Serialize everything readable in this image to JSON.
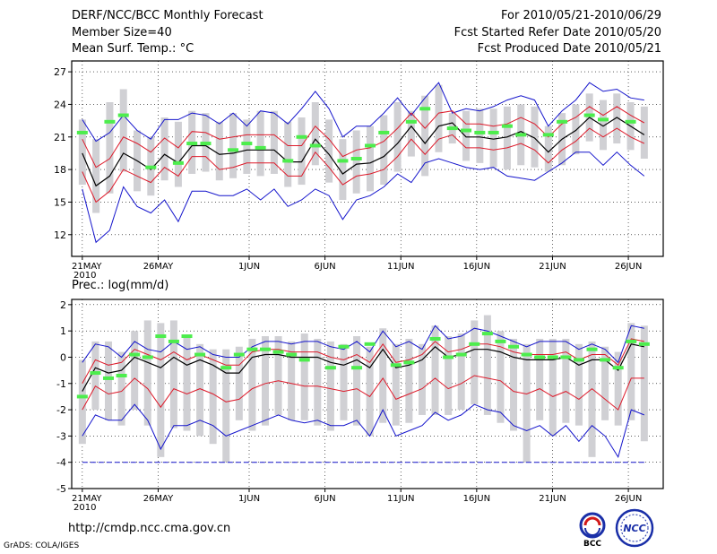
{
  "header": {
    "title": "DERF/NCC/BCC Monthly Forecast",
    "member_size": "Member Size=40",
    "variable": "Mean Surf. Temp.: °C",
    "period": "For 2010/05/21-2010/06/29",
    "started": "Fcst Started Refer Date 2010/05/20",
    "produced": "Fcst Produced Date 2010/05/21"
  },
  "footer": {
    "url": "http://cmdp.ncc.cma.gov.cn",
    "credit": "GrADS: COLA/IGES",
    "logo_bcc": "BCC",
    "logo_ncc": "NCC"
  },
  "colors": {
    "bar": "#d0d0d4",
    "obs": "#4ded4d",
    "mean": "#000000",
    "inner": "#dd1a2a",
    "outer": "#1414cc"
  },
  "chart_data": [
    {
      "type": "line",
      "title": "Mean Surf. Temp.: °C",
      "ylabel": "°C",
      "ylim": [
        10,
        28
      ],
      "yticks": [
        12,
        15,
        18,
        21,
        24,
        27
      ],
      "x_days": 39,
      "xtick_labels": [
        "21MAY",
        "26MAY",
        "1JUN",
        "6JUN",
        "11JUN",
        "16JUN",
        "21JUN",
        "26JUN"
      ],
      "xtick_days": [
        0,
        5,
        11,
        16,
        21,
        26,
        31,
        36
      ],
      "year_label": "2010",
      "mean": [
        19.5,
        16.5,
        17.4,
        19.5,
        18.8,
        18.0,
        19.4,
        18.6,
        20.2,
        20.2,
        19.4,
        19.5,
        19.8,
        19.8,
        19.8,
        18.7,
        18.7,
        20.8,
        19.4,
        17.6,
        18.5,
        18.6,
        19.2,
        20.4,
        22.0,
        20.4,
        22.0,
        22.3,
        21.0,
        21.0,
        20.8,
        21.0,
        21.5,
        20.9,
        19.6,
        20.8,
        21.6,
        22.8,
        22.0,
        22.8,
        22.0,
        21.2
      ],
      "inner_upper": [
        20.8,
        18.2,
        19.0,
        21.0,
        20.4,
        19.6,
        20.9,
        20.0,
        21.5,
        21.4,
        20.8,
        21.0,
        21.2,
        21.2,
        21.2,
        20.2,
        20.2,
        22.0,
        20.8,
        19.2,
        19.8,
        20.0,
        20.6,
        21.8,
        23.2,
        21.8,
        23.2,
        23.4,
        22.2,
        22.2,
        22.0,
        22.2,
        22.8,
        22.2,
        21.0,
        22.2,
        22.8,
        23.8,
        23.0,
        23.8,
        23.0,
        22.3
      ],
      "inner_lower": [
        17.8,
        15.0,
        16.0,
        18.0,
        17.4,
        16.8,
        18.2,
        17.4,
        19.2,
        19.2,
        18.0,
        18.2,
        18.6,
        18.6,
        18.6,
        17.4,
        17.4,
        19.6,
        18.2,
        16.6,
        17.4,
        17.6,
        18.0,
        19.2,
        20.8,
        19.4,
        20.8,
        21.2,
        20.0,
        20.0,
        19.8,
        20.0,
        20.4,
        19.8,
        18.6,
        19.8,
        20.6,
        21.8,
        21.0,
        21.8,
        21.0,
        20.4
      ],
      "outer_upper": [
        22.6,
        20.6,
        21.4,
        23.0,
        21.6,
        20.8,
        22.6,
        22.6,
        23.2,
        23.0,
        22.2,
        23.2,
        22.0,
        23.4,
        23.2,
        22.2,
        23.6,
        25.2,
        23.6,
        21.0,
        22.0,
        22.0,
        23.2,
        24.6,
        23.0,
        24.6,
        26.0,
        23.2,
        23.6,
        23.4,
        23.8,
        24.4,
        24.8,
        24.4,
        22.0,
        23.4,
        24.4,
        26.0,
        25.2,
        25.4,
        24.6,
        24.4
      ],
      "outer_lower": [
        16.2,
        11.3,
        12.4,
        16.4,
        14.6,
        14.0,
        15.2,
        13.2,
        16.0,
        16.0,
        15.6,
        15.6,
        16.2,
        15.2,
        16.2,
        14.6,
        15.2,
        16.2,
        15.6,
        13.4,
        15.2,
        15.6,
        16.4,
        17.6,
        16.8,
        18.6,
        19.0,
        18.6,
        18.2,
        18.0,
        18.2,
        17.4,
        17.2,
        17.0,
        17.8,
        18.6,
        19.6,
        19.6,
        18.4,
        19.6,
        18.4,
        17.4
      ],
      "bar_top": [
        22.6,
        20.8,
        24.2,
        25.4,
        21.6,
        21.0,
        22.8,
        22.4,
        23.4,
        23.2,
        22.4,
        23.2,
        22.6,
        23.4,
        23.4,
        22.4,
        22.8,
        24.2,
        22.6,
        20.8,
        21.6,
        22.0,
        23.0,
        24.2,
        23.4,
        24.8,
        25.8,
        23.2,
        23.4,
        23.6,
        23.6,
        23.8,
        24.0,
        23.8,
        22.0,
        23.2,
        24.0,
        25.0,
        24.4,
        25.0,
        24.2,
        23.8
      ],
      "bar_bottom": [
        16.6,
        14.0,
        15.8,
        17.8,
        16.0,
        15.6,
        17.0,
        16.4,
        17.6,
        17.8,
        17.0,
        17.2,
        17.6,
        17.4,
        17.6,
        16.4,
        16.6,
        18.4,
        16.8,
        15.2,
        15.8,
        16.0,
        16.6,
        17.8,
        19.2,
        17.4,
        19.6,
        20.4,
        18.8,
        18.6,
        18.2,
        18.0,
        18.4,
        18.2,
        17.8,
        18.4,
        19.4,
        20.6,
        19.8,
        20.4,
        19.8,
        19.0
      ],
      "observed": [
        21.4,
        null,
        22.4,
        23.0,
        null,
        18.2,
        null,
        18.6,
        20.4,
        20.4,
        null,
        19.8,
        20.4,
        20.0,
        null,
        18.8,
        21.0,
        20.2,
        null,
        18.8,
        19.0,
        20.2,
        21.4,
        null,
        22.4,
        23.6,
        null,
        21.8,
        21.6,
        21.4,
        21.4,
        22.0,
        21.2,
        null,
        21.2,
        22.4,
        null,
        23.0,
        22.6,
        null,
        22.4,
        null
      ]
    },
    {
      "type": "line",
      "title": "Prec.: log(mm/d)",
      "ylabel": "log(mm/d)",
      "ylim": [
        -5,
        2.2
      ],
      "yticks": [
        -5,
        -4,
        -3,
        -2,
        -1,
        0,
        1,
        2
      ],
      "x_days": 39,
      "xtick_labels": [
        "21MAY",
        "26MAY",
        "1JUN",
        "6JUN",
        "11JUN",
        "16JUN",
        "21JUN",
        "26JUN"
      ],
      "xtick_days": [
        0,
        5,
        11,
        16,
        21,
        26,
        31,
        36
      ],
      "year_label": "2010",
      "baseline": -4,
      "mean": [
        -1.3,
        -0.4,
        -0.6,
        -0.5,
        0.0,
        -0.2,
        -0.4,
        0.0,
        -0.3,
        -0.1,
        -0.3,
        -0.6,
        -0.6,
        0.0,
        0.1,
        0.1,
        0.0,
        0.0,
        0.0,
        -0.2,
        -0.3,
        -0.1,
        -0.4,
        0.3,
        -0.4,
        -0.3,
        -0.1,
        0.4,
        0.0,
        0.1,
        0.3,
        0.3,
        0.2,
        0.0,
        -0.1,
        -0.1,
        -0.1,
        0.0,
        -0.3,
        -0.1,
        -0.1,
        -0.5,
        0.5,
        0.4
      ],
      "inner_upper": [
        -1.0,
        -0.1,
        -0.3,
        -0.2,
        0.3,
        0.1,
        -0.1,
        0.2,
        -0.1,
        0.1,
        -0.1,
        -0.3,
        -0.3,
        0.2,
        0.3,
        0.3,
        0.2,
        0.2,
        0.2,
        0.0,
        -0.1,
        0.1,
        -0.2,
        0.5,
        -0.2,
        -0.1,
        0.1,
        0.6,
        0.2,
        0.3,
        0.5,
        0.5,
        0.4,
        0.2,
        0.1,
        0.1,
        0.1,
        0.2,
        -0.1,
        0.1,
        0.1,
        -0.3,
        0.7,
        0.6
      ],
      "inner_lower": [
        -2.0,
        -1.1,
        -1.4,
        -1.3,
        -0.8,
        -1.2,
        -1.9,
        -1.2,
        -1.4,
        -1.2,
        -1.4,
        -1.7,
        -1.6,
        -1.2,
        -1.0,
        -0.9,
        -1.0,
        -1.1,
        -1.1,
        -1.2,
        -1.3,
        -1.2,
        -1.5,
        -0.8,
        -1.6,
        -1.4,
        -1.2,
        -0.8,
        -1.2,
        -1.0,
        -0.7,
        -0.8,
        -0.9,
        -1.3,
        -1.4,
        -1.2,
        -1.5,
        -1.3,
        -1.6,
        -1.2,
        -1.6,
        -2.0,
        -0.8,
        -0.8
      ],
      "outer_upper": [
        -0.2,
        0.5,
        0.4,
        0.0,
        0.6,
        0.3,
        0.2,
        0.6,
        0.3,
        0.4,
        0.1,
        0.0,
        0.0,
        0.4,
        0.6,
        0.6,
        0.5,
        0.6,
        0.6,
        0.4,
        0.3,
        0.6,
        0.2,
        1.0,
        0.4,
        0.6,
        0.3,
        1.2,
        0.7,
        0.8,
        1.1,
        1.0,
        0.8,
        0.6,
        0.4,
        0.6,
        0.6,
        0.6,
        0.3,
        0.5,
        0.3,
        -0.2,
        1.2,
        1.1
      ],
      "outer_lower": [
        -3.0,
        -2.2,
        -2.4,
        -2.4,
        -1.8,
        -2.4,
        -3.5,
        -2.6,
        -2.6,
        -2.4,
        -2.6,
        -3.0,
        -2.8,
        -2.6,
        -2.4,
        -2.2,
        -2.4,
        -2.5,
        -2.4,
        -2.6,
        -2.6,
        -2.4,
        -3.0,
        -2.0,
        -3.0,
        -2.8,
        -2.6,
        -2.1,
        -2.4,
        -2.2,
        -1.8,
        -2.0,
        -2.1,
        -2.6,
        -2.8,
        -2.6,
        -3.0,
        -2.6,
        -3.2,
        -2.6,
        -3.0,
        -3.8,
        -2.0,
        -2.2
      ],
      "bar_top": [
        -0.1,
        0.6,
        0.6,
        0.2,
        1.0,
        1.4,
        1.3,
        1.4,
        0.8,
        0.5,
        0.3,
        0.3,
        0.4,
        0.7,
        0.8,
        0.8,
        0.6,
        0.9,
        0.7,
        0.6,
        0.5,
        0.8,
        0.4,
        1.1,
        0.5,
        0.7,
        0.5,
        1.2,
        0.8,
        0.9,
        1.4,
        1.6,
        1.0,
        0.7,
        0.5,
        0.7,
        0.7,
        0.7,
        0.5,
        0.6,
        0.4,
        0.2,
        1.3,
        1.2
      ],
      "bar_bottom": [
        -3.3,
        -2.0,
        -2.4,
        -2.6,
        -2.0,
        -2.6,
        -3.8,
        -2.7,
        -2.8,
        -3.0,
        -3.3,
        -4.0,
        -2.4,
        -2.8,
        -2.6,
        -2.2,
        -2.4,
        -2.4,
        -2.6,
        -2.8,
        -2.4,
        -2.6,
        -3.0,
        -2.5,
        -2.6,
        -2.5,
        -2.2,
        -2.2,
        -2.2,
        -2.0,
        -1.8,
        -2.2,
        -2.5,
        -2.8,
        -4.0,
        -2.4,
        -3.0,
        -2.5,
        -2.6,
        -3.8,
        -2.4,
        -2.6,
        -2.4,
        -3.2
      ],
      "observed": [
        -1.5,
        -0.6,
        -0.8,
        -0.7,
        0.1,
        0.0,
        0.8,
        0.6,
        0.8,
        0.1,
        null,
        -0.4,
        0.1,
        0.3,
        0.3,
        0.2,
        0.1,
        -0.1,
        null,
        -0.4,
        0.4,
        -0.4,
        0.5,
        null,
        -0.3,
        -0.2,
        null,
        0.7,
        0.0,
        0.1,
        0.5,
        0.9,
        0.6,
        0.4,
        0.1,
        0.0,
        0.0,
        0.0,
        -0.1,
        0.3,
        -0.1,
        -0.4,
        0.6,
        0.5
      ]
    }
  ]
}
